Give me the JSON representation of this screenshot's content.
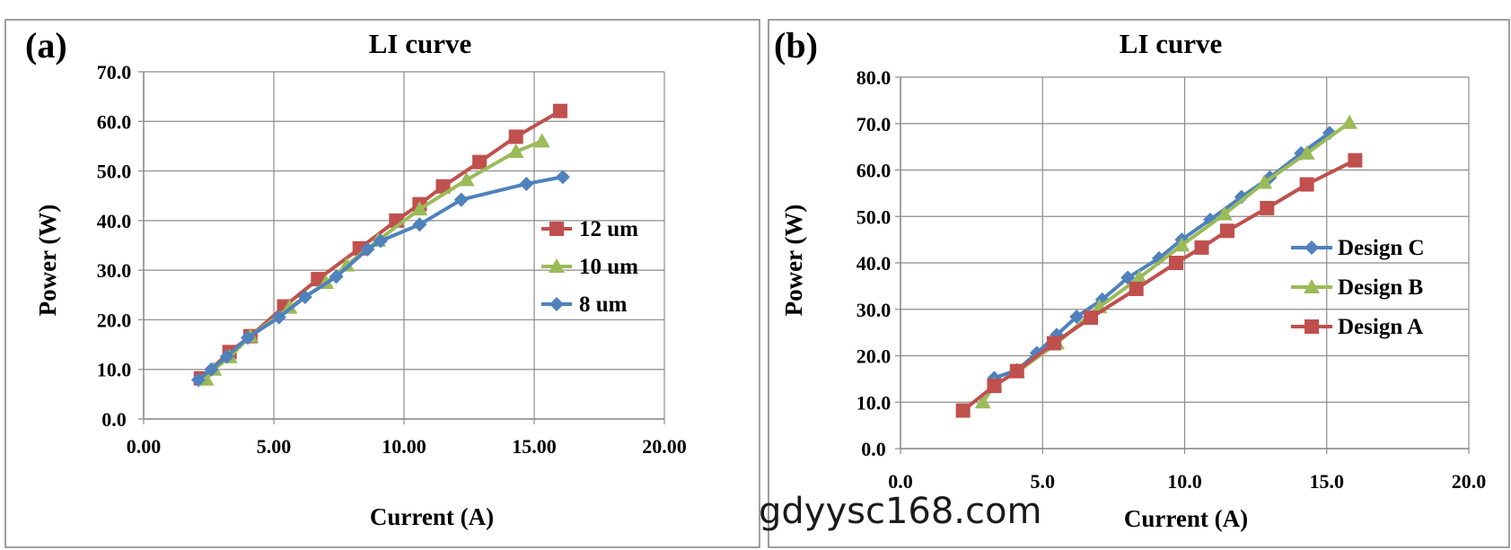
{
  "watermark": "gdyysc168.com",
  "colors": {
    "red": "#c0504d",
    "green": "#9bbb59",
    "blue": "#4f81bd"
  },
  "chart_data": [
    {
      "type": "line",
      "panel_label": "(a)",
      "title": "LI curve",
      "xlabel": "Current (A)",
      "ylabel": "Power (W)",
      "xlim": [
        0,
        20
      ],
      "ylim": [
        0,
        70
      ],
      "xticks": [
        "0.00",
        "5.00",
        "10.00",
        "15.00",
        "20.00"
      ],
      "yticks": [
        "0.0",
        "10.0",
        "20.0",
        "30.0",
        "40.0",
        "50.0",
        "60.0",
        "70.0"
      ],
      "grid": true,
      "legend_position": "right",
      "series": [
        {
          "name": "12 um",
          "color": "#c0504d",
          "marker": "square",
          "points": [
            [
              2.2,
              8.2
            ],
            [
              3.3,
              13.5
            ],
            [
              4.1,
              16.7
            ],
            [
              5.4,
              22.7
            ],
            [
              6.7,
              28.2
            ],
            [
              8.3,
              34.4
            ],
            [
              9.7,
              40.0
            ],
            [
              10.6,
              43.3
            ],
            [
              11.5,
              46.9
            ],
            [
              12.9,
              51.8
            ],
            [
              14.3,
              56.9
            ],
            [
              16.0,
              62.1
            ]
          ]
        },
        {
          "name": "10 um",
          "color": "#9bbb59",
          "marker": "triangle",
          "points": [
            [
              2.4,
              8.0
            ],
            [
              2.7,
              10.0
            ],
            [
              3.3,
              12.5
            ],
            [
              4.1,
              16.7
            ],
            [
              5.6,
              22.5
            ],
            [
              7.0,
              27.5
            ],
            [
              7.8,
              31.0
            ],
            [
              9.0,
              36.0
            ],
            [
              10.6,
              42.3
            ],
            [
              12.4,
              48.2
            ],
            [
              14.3,
              53.9
            ],
            [
              15.3,
              56.0
            ]
          ]
        },
        {
          "name": "8 um",
          "color": "#4f81bd",
          "marker": "diamond",
          "points": [
            [
              2.1,
              7.9
            ],
            [
              2.6,
              10.0
            ],
            [
              3.2,
              12.6
            ],
            [
              4.0,
              16.4
            ],
            [
              5.2,
              20.5
            ],
            [
              6.2,
              24.6
            ],
            [
              7.4,
              28.7
            ],
            [
              8.6,
              34.2
            ],
            [
              9.1,
              35.9
            ],
            [
              10.6,
              39.2
            ],
            [
              12.2,
              44.2
            ],
            [
              14.7,
              47.4
            ],
            [
              16.1,
              48.8
            ]
          ]
        }
      ]
    },
    {
      "type": "line",
      "panel_label": "(b)",
      "title": "LI curve",
      "xlabel": "Current (A)",
      "ylabel": "Power (W)",
      "xlim": [
        0,
        20
      ],
      "ylim": [
        0,
        80
      ],
      "xticks": [
        "0.0",
        "5.0",
        "10.0",
        "15.0",
        "20.0"
      ],
      "yticks": [
        "0.0",
        "10.0",
        "20.0",
        "30.0",
        "40.0",
        "50.0",
        "60.0",
        "70.0",
        "80.0"
      ],
      "grid": true,
      "legend_position": "right",
      "series": [
        {
          "name": "Design C",
          "color": "#4f81bd",
          "marker": "diamond",
          "points": [
            [
              3.3,
              15.2
            ],
            [
              4.1,
              16.9
            ],
            [
              4.8,
              20.6
            ],
            [
              5.5,
              24.5
            ],
            [
              6.2,
              28.4
            ],
            [
              7.1,
              32.1
            ],
            [
              8.0,
              36.8
            ],
            [
              9.1,
              41.0
            ],
            [
              9.9,
              45.0
            ],
            [
              10.9,
              49.3
            ],
            [
              12.0,
              54.2
            ],
            [
              13.0,
              58.4
            ],
            [
              14.1,
              63.6
            ],
            [
              15.1,
              68.0
            ]
          ]
        },
        {
          "name": "Design B",
          "color": "#9bbb59",
          "marker": "triangle",
          "points": [
            [
              2.9,
              10.0
            ],
            [
              3.3,
              13.7
            ],
            [
              4.1,
              16.5
            ],
            [
              5.5,
              22.7
            ],
            [
              7.0,
              30.5
            ],
            [
              8.4,
              36.8
            ],
            [
              9.9,
              43.8
            ],
            [
              11.4,
              50.5
            ],
            [
              12.8,
              57.3
            ],
            [
              14.3,
              63.6
            ],
            [
              15.8,
              70.2
            ]
          ]
        },
        {
          "name": "Design A",
          "color": "#c0504d",
          "marker": "square",
          "points": [
            [
              2.2,
              8.2
            ],
            [
              3.3,
              13.5
            ],
            [
              4.1,
              16.7
            ],
            [
              5.4,
              22.7
            ],
            [
              6.7,
              28.2
            ],
            [
              8.3,
              34.4
            ],
            [
              9.7,
              40.0
            ],
            [
              10.6,
              43.3
            ],
            [
              11.5,
              46.9
            ],
            [
              12.9,
              51.8
            ],
            [
              14.3,
              56.9
            ],
            [
              16.0,
              62.1
            ]
          ]
        }
      ]
    }
  ]
}
